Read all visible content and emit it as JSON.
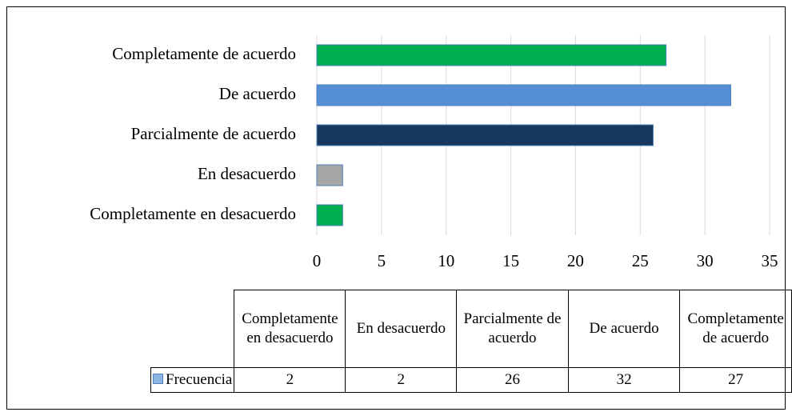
{
  "chart_data": {
    "type": "bar",
    "orientation": "horizontal",
    "categories": [
      "Completamente en desacuerdo",
      "En desacuerdo",
      "Parcialmente de acuerdo",
      "De acuerdo",
      "Completamente de acuerdo"
    ],
    "series": [
      {
        "name": "Frecuencia",
        "color": "#8eb4e3",
        "colors": [
          "#00b050",
          "#a6a6a6",
          "#17375e",
          "#558ed5",
          "#00b050"
        ],
        "values": [
          2,
          2,
          26,
          32,
          27
        ]
      }
    ],
    "xlim": [
      0,
      35
    ],
    "xticks": [
      0,
      5,
      10,
      15,
      20,
      25,
      30,
      35
    ],
    "grid": true
  }
}
